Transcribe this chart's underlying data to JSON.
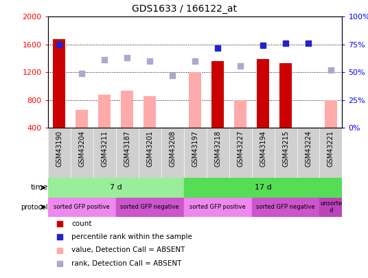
{
  "title": "GDS1633 / 166122_at",
  "samples": [
    "GSM43190",
    "GSM43204",
    "GSM43211",
    "GSM43187",
    "GSM43201",
    "GSM43208",
    "GSM43197",
    "GSM43218",
    "GSM43227",
    "GSM43194",
    "GSM43215",
    "GSM43224",
    "GSM43221"
  ],
  "count_present": [
    1680,
    null,
    null,
    null,
    null,
    null,
    null,
    1360,
    null,
    1390,
    1330,
    null,
    null
  ],
  "count_absent": [
    null,
    660,
    880,
    940,
    860,
    null,
    1200,
    null,
    800,
    null,
    null,
    null,
    800
  ],
  "rank_present": [
    75,
    null,
    null,
    null,
    null,
    null,
    null,
    72,
    null,
    74,
    76,
    76,
    null
  ],
  "rank_absent": [
    null,
    49,
    61,
    63,
    60,
    47,
    60,
    null,
    56,
    null,
    null,
    null,
    52
  ],
  "ylim_left": [
    400,
    2000
  ],
  "ylim_right": [
    0,
    100
  ],
  "yticks_left": [
    400,
    800,
    1200,
    1600,
    2000
  ],
  "yticks_right": [
    0,
    25,
    50,
    75,
    100
  ],
  "color_count_present": "#cc0000",
  "color_count_absent": "#ffaaaa",
  "color_rank_present": "#2222cc",
  "color_rank_absent": "#aaaacc",
  "time_groups": [
    {
      "label": "7 d",
      "start": 0,
      "end": 6,
      "color": "#99ee99"
    },
    {
      "label": "17 d",
      "start": 6,
      "end": 13,
      "color": "#55dd55"
    }
  ],
  "protocol_groups": [
    {
      "label": "sorted GFP positive",
      "start": 0,
      "end": 3,
      "color": "#ee88ee"
    },
    {
      "label": "sorted GFP negative",
      "start": 3,
      "end": 6,
      "color": "#cc55cc"
    },
    {
      "label": "sorted GFP positive",
      "start": 6,
      "end": 9,
      "color": "#ee88ee"
    },
    {
      "label": "sorted GFP negative",
      "start": 9,
      "end": 12,
      "color": "#cc55cc"
    },
    {
      "label": "unsorte\nd",
      "start": 12,
      "end": 13,
      "color": "#bb44bb"
    }
  ],
  "legend_items": [
    {
      "label": "count",
      "color": "#cc0000",
      "marker": "s"
    },
    {
      "label": "percentile rank within the sample",
      "color": "#2222cc",
      "marker": "s"
    },
    {
      "label": "value, Detection Call = ABSENT",
      "color": "#ffaaaa",
      "marker": "s"
    },
    {
      "label": "rank, Detection Call = ABSENT",
      "color": "#aaaacc",
      "marker": "s"
    }
  ]
}
